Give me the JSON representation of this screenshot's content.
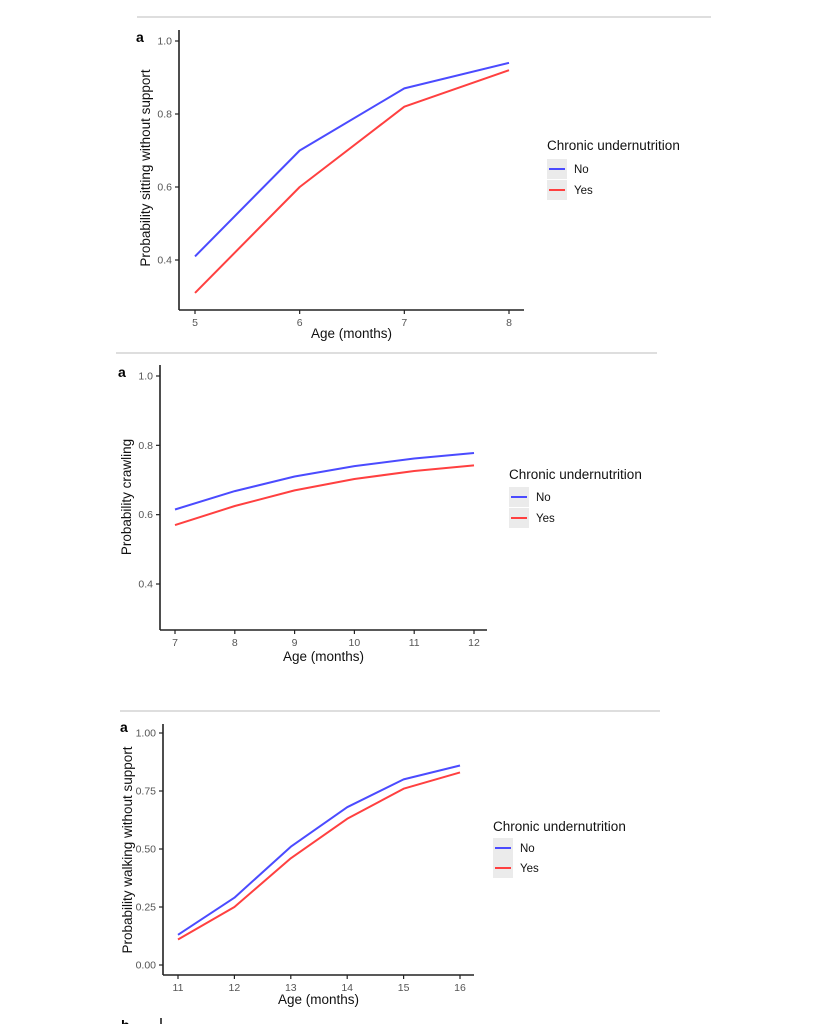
{
  "chart_data": [
    {
      "type": "line",
      "panel_label": "a",
      "title": "",
      "xlabel": "Age (months)",
      "ylabel": "Probability sitting without support",
      "x": [
        5,
        6,
        7,
        8
      ],
      "xticks": [
        "5",
        "6",
        "7",
        "8"
      ],
      "yticks": [
        "0.4",
        "0.6",
        "0.8",
        "1.0"
      ],
      "xlim": [
        5,
        8
      ],
      "ylim": [
        0.38,
        1.0
      ],
      "series": [
        {
          "name": "No",
          "color": "#4b4bff",
          "values": [
            0.41,
            0.7,
            0.87,
            0.94
          ]
        },
        {
          "name": "Yes",
          "color": "#ff4040",
          "values": [
            0.31,
            0.6,
            0.82,
            0.92
          ]
        }
      ],
      "legend_title": "Chronic undernutrition",
      "legend_position": "right"
    },
    {
      "type": "line",
      "panel_label": "a",
      "title": "",
      "xlabel": "Age (months)",
      "ylabel": "Probability crawling",
      "x": [
        7,
        8,
        9,
        10,
        11,
        12
      ],
      "xticks": [
        "7",
        "8",
        "9",
        "10",
        "11",
        "12"
      ],
      "yticks": [
        "0.4",
        "0.6",
        "0.8",
        "1.0"
      ],
      "xlim": [
        7,
        12
      ],
      "ylim": [
        0.34,
        1.0
      ],
      "series": [
        {
          "name": "No",
          "color": "#4b4bff",
          "values": [
            0.615,
            0.668,
            0.71,
            0.74,
            0.762,
            0.778
          ]
        },
        {
          "name": "Yes",
          "color": "#ff4040",
          "values": [
            0.57,
            0.625,
            0.67,
            0.703,
            0.726,
            0.742
          ]
        }
      ],
      "legend_title": "Chronic undernutrition",
      "legend_position": "right"
    },
    {
      "type": "line",
      "panel_label": "a",
      "title": "",
      "xlabel": "Age (months)",
      "ylabel": "Probability walking without support",
      "x": [
        11,
        12,
        13,
        14,
        15,
        16
      ],
      "xticks": [
        "11",
        "12",
        "13",
        "14",
        "15",
        "16"
      ],
      "yticks": [
        "0.00",
        "0.25",
        "0.50",
        "0.75",
        "1.00"
      ],
      "xlim": [
        11,
        16
      ],
      "ylim": [
        0.0,
        1.0
      ],
      "series": [
        {
          "name": "No",
          "color": "#4b4bff",
          "values": [
            0.13,
            0.29,
            0.51,
            0.68,
            0.8,
            0.86
          ]
        },
        {
          "name": "Yes",
          "color": "#ff4040",
          "values": [
            0.11,
            0.25,
            0.46,
            0.63,
            0.76,
            0.83
          ]
        }
      ],
      "legend_title": "Chronic undernutrition",
      "legend_position": "right"
    }
  ],
  "next_panel_label": "b"
}
